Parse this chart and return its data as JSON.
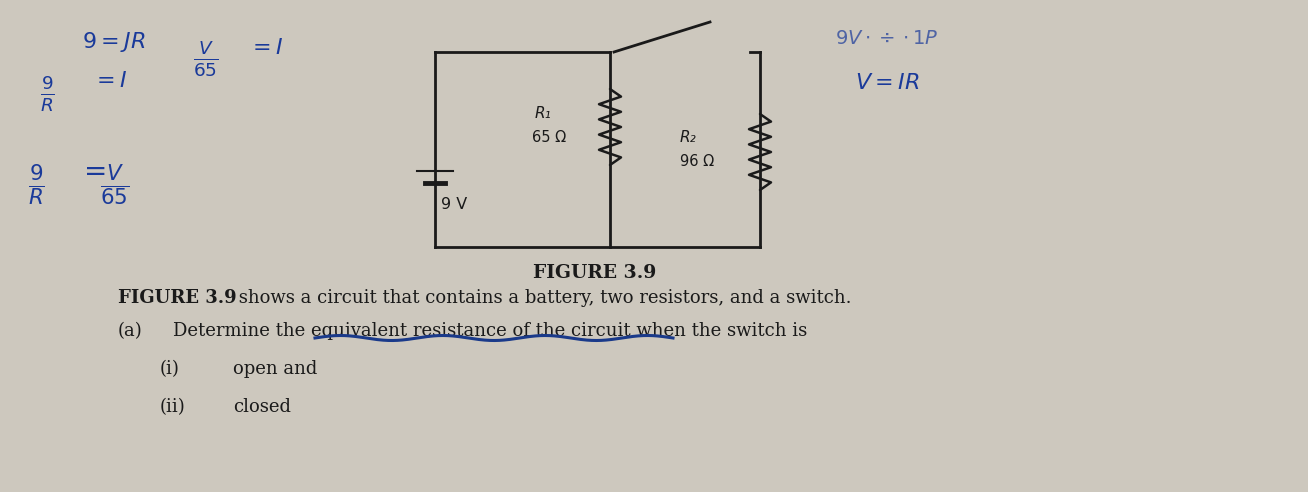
{
  "bg_color": "#cdc8be",
  "title_caption": "FIGURE 3.9",
  "bold_label": "FIGURE 3.9",
  "description": " shows a circuit that contains a battery, two resistors, and a switch.",
  "part_a_label": "(a)",
  "part_a_text": "Determine the equivalent resistance of the circuit when the switch is",
  "part_i_label": "(i)",
  "part_i_text": "open and",
  "part_ii_label": "(ii)",
  "part_ii_text": "closed",
  "blue_color": "#1a3a9a",
  "black_color": "#1a1a1a",
  "underline_color": "#1a3a8a",
  "circuit_battery": "9 V",
  "circuit_R1_label": "R₁",
  "circuit_R1_val": "65 Ω",
  "circuit_R2_label": "R₂",
  "circuit_R2_val": "96 Ω"
}
